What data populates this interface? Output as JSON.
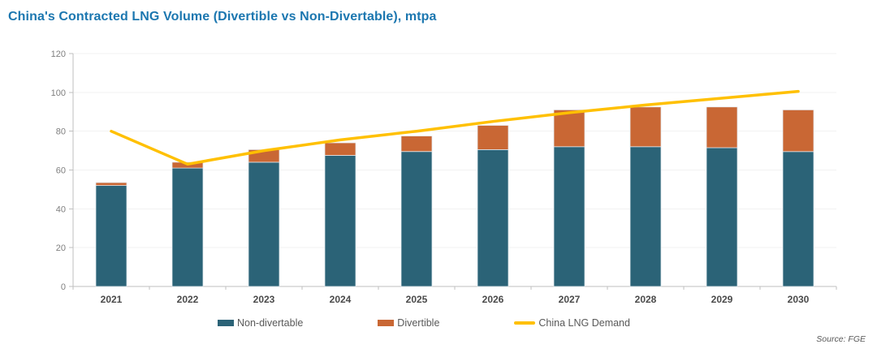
{
  "source_note": "Source: FGE",
  "chart_data": {
    "type": "bar",
    "subtype": "stacked-bars-with-line-overlay",
    "title": "China's Contracted LNG Volume (Divertible vs Non-Divertable), mtpa",
    "categories": [
      "2021",
      "2022",
      "2023",
      "2024",
      "2025",
      "2026",
      "2027",
      "2028",
      "2029",
      "2030"
    ],
    "series": [
      {
        "name": "Non-divertable",
        "type": "bar",
        "color": "#2B6377",
        "values": [
          52,
          61,
          64,
          67.5,
          69.5,
          70.5,
          72,
          72,
          71.5,
          69.5
        ]
      },
      {
        "name": "Divertible",
        "type": "bar",
        "color": "#C96734",
        "values": [
          1.5,
          3,
          6.5,
          6.5,
          8,
          12.5,
          19,
          20.5,
          21,
          21.5
        ]
      },
      {
        "name": "China LNG Demand",
        "type": "line",
        "color": "#FFC000",
        "values": [
          80,
          63,
          70,
          75.5,
          80,
          85,
          89.5,
          93.5,
          97,
          100.5
        ]
      }
    ],
    "stacked": true,
    "xlabel": "",
    "ylabel": "",
    "ylim": [
      0,
      120
    ],
    "yticks": [
      0,
      20,
      40,
      60,
      80,
      100,
      120
    ],
    "grid": true,
    "legend_position": "bottom"
  },
  "colors": {
    "title": "#1C77B0",
    "axis": "#BFBFBF",
    "grid": "#F2F2F2",
    "bar_edge": "#E4EAF0",
    "y_tick_label": "#7F7F7F",
    "x_tick_label": "#4A4A4A",
    "legend_label": "#595959",
    "source": "#595959",
    "background": "#FFFFFF"
  }
}
